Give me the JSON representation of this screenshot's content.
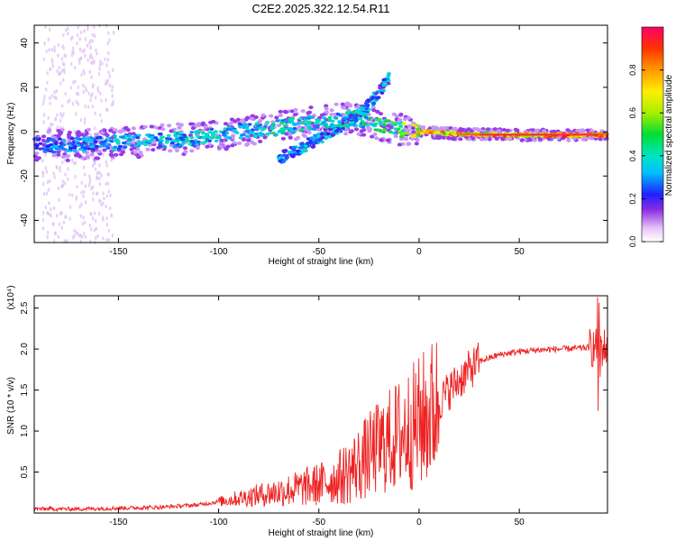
{
  "title": "C2E2.2025.322.12.54.R11",
  "colors": {
    "axis": "#000000",
    "snr_line": "#ee2222",
    "grid_bg": "#ffffff"
  },
  "chart_data": [
    {
      "type": "heatmap",
      "name": "spectrogram",
      "xlabel": "Height of straight line (km)",
      "ylabel": "Frequency (Hz)",
      "xlim": [
        -192,
        94
      ],
      "ylim": [
        -50,
        48
      ],
      "xticks": [
        -150,
        -100,
        -50,
        0,
        50
      ],
      "xtick_labels": [
        "-150",
        "-100",
        "-50",
        "0",
        "50"
      ],
      "yticks": [
        -40,
        -20,
        0,
        20,
        40
      ],
      "ytick_labels": [
        "-40",
        "-20",
        "0",
        "20",
        "40"
      ],
      "trace": {
        "x": [
          -192,
          -170,
          -150,
          -130,
          -110,
          -90,
          -70,
          -55,
          -45,
          -35,
          -25,
          -15,
          -10,
          0,
          20,
          50,
          80,
          94
        ],
        "y": [
          -6,
          -6,
          -5,
          -4,
          -3,
          0,
          2,
          4,
          5,
          6,
          5,
          2,
          1,
          0,
          -1,
          -1.5,
          -1.5,
          -1.5
        ],
        "amplitude": [
          0.3,
          0.35,
          0.4,
          0.4,
          0.42,
          0.42,
          0.45,
          0.45,
          0.45,
          0.45,
          0.5,
          0.55,
          0.6,
          0.8,
          0.85,
          0.95,
          0.95,
          0.9
        ]
      },
      "secondary_branch": {
        "x": [
          -70,
          -60,
          -50,
          -40,
          -30,
          -25,
          -20,
          -15
        ],
        "y": [
          -12,
          -8,
          -3,
          2,
          8,
          12,
          18,
          24
        ]
      }
    },
    {
      "type": "colorbar",
      "name": "colorbar",
      "label": "Normalized spectral amplitude",
      "range": [
        0.0,
        1.0
      ],
      "ticks": [
        0.0,
        0.2,
        0.4,
        0.6,
        0.8
      ],
      "tick_labels": [
        "0.0",
        "0.2",
        "0.4",
        "0.6",
        "0.8"
      ]
    },
    {
      "type": "line",
      "name": "snr",
      "xlabel": "Height of straight line (km)",
      "ylabel": "SNR (10 * v/v)",
      "multiplier_label": "(x10⁴)",
      "xlim": [
        -192,
        94
      ],
      "ylim": [
        0.0,
        2.65
      ],
      "xticks": [
        -150,
        -100,
        -50,
        0,
        50
      ],
      "xtick_labels": [
        "-150",
        "-100",
        "-50",
        "0",
        "50"
      ],
      "yticks": [
        0.5,
        1.0,
        1.5,
        2.0,
        2.5
      ],
      "ytick_labels": [
        "0.5",
        "1.0",
        "1.5",
        "2.0",
        "2.5"
      ],
      "envelope": {
        "x": [
          -192,
          -170,
          -150,
          -130,
          -110,
          -100,
          -90,
          -80,
          -70,
          -60,
          -50,
          -40,
          -30,
          -20,
          -10,
          0,
          5,
          10,
          15,
          20,
          25,
          30,
          40,
          50,
          60,
          70,
          80,
          85,
          90,
          94
        ],
        "y": [
          0.05,
          0.05,
          0.06,
          0.07,
          0.1,
          0.14,
          0.18,
          0.22,
          0.26,
          0.3,
          0.35,
          0.42,
          0.6,
          0.8,
          0.95,
          1.1,
          1.2,
          1.35,
          1.5,
          1.62,
          1.74,
          1.85,
          1.93,
          1.97,
          1.99,
          2.0,
          2.01,
          2.02,
          2.02,
          2.02
        ]
      }
    }
  ]
}
